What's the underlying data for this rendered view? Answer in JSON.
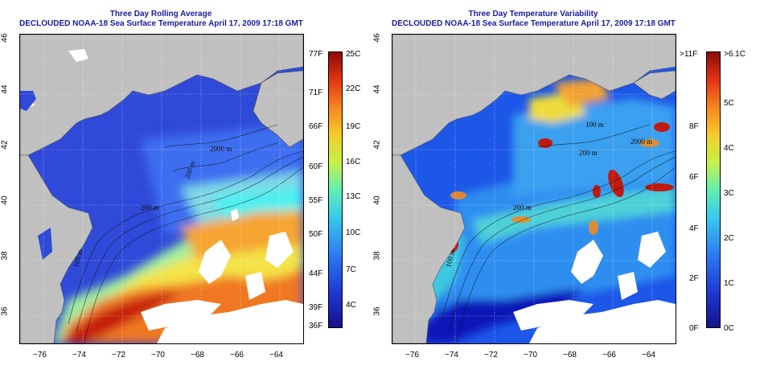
{
  "left_panel": {
    "title_line1": "Three Day Rolling Average",
    "title_line2": "DECLOUDED NOAA-18 Sea Surface Temperature April 17, 2009 17:18 GMT",
    "colorbar_f_labels": [
      "77F",
      "71F",
      "66F",
      "60F",
      "55F",
      "50F",
      "44F",
      "39F",
      "36F"
    ],
    "colorbar_c_labels": [
      "25C",
      "22C",
      "19C",
      "16C",
      "13C",
      "10C",
      "7C",
      "4C"
    ],
    "contour_labels": [
      "200 m",
      "2000 m",
      "200 m",
      "100 m"
    ]
  },
  "right_panel": {
    "title_line1": "Three Day Temperature Variability",
    "title_line2": "DECLOUDED NOAA-18 Sea Surface Temperature April 17, 2009 17:18 GMT",
    "colorbar_f_labels": [
      ">11F",
      "8F",
      "6F",
      "4F",
      "2F",
      "0F"
    ],
    "colorbar_c_labels": [
      ">6.1C",
      "5C",
      "4C",
      "3C",
      "2C",
      "1C",
      "0C"
    ],
    "contour_labels": [
      "100 m",
      "200 m",
      "2000 m",
      "200 m",
      "100 m"
    ]
  },
  "axes": {
    "lon_labels": [
      "−76",
      "−74",
      "−72",
      "−70",
      "−68",
      "−66",
      "−64"
    ],
    "lat_labels": [
      "36",
      "38",
      "40",
      "42",
      "44",
      "46"
    ]
  },
  "colors": {
    "title": "#1a1aa0",
    "land": "#c0c0c0",
    "cloud": "#ffffff"
  }
}
